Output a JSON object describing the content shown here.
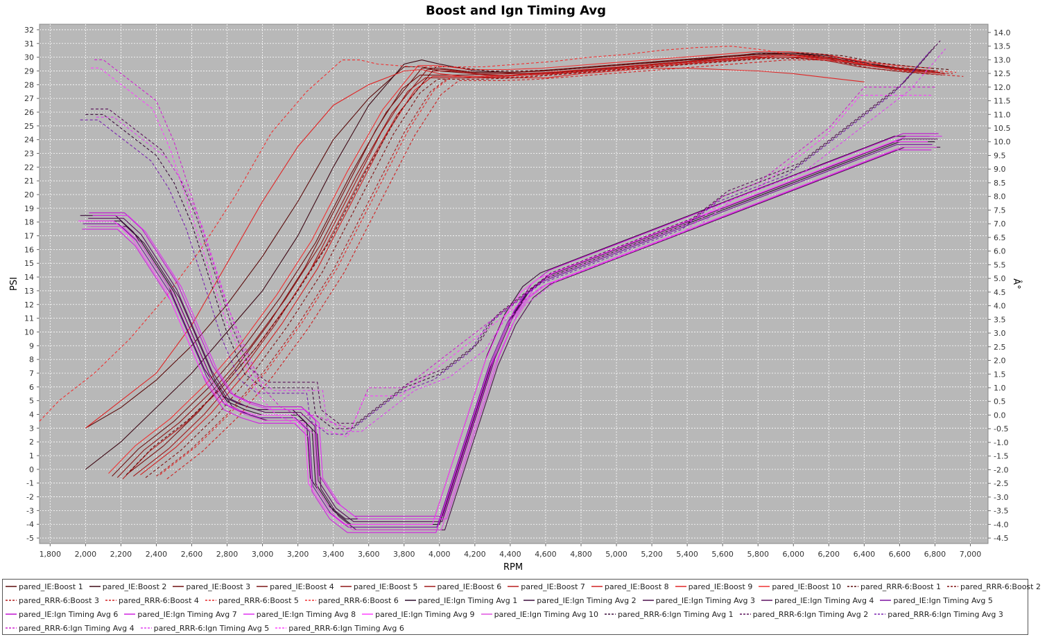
{
  "chart_data": {
    "type": "line",
    "title": "Boost and Ign Timing Avg",
    "xlabel": "RPM",
    "ylabel": "PSI",
    "y2label": "Â°",
    "xlim": [
      1740,
      7100
    ],
    "ylim": [
      -5.4,
      32.4
    ],
    "y2lim": [
      -4.7,
      14.3
    ],
    "grid": true,
    "legend_position": "bottom",
    "x_ticks": [
      "1,800",
      "2,000",
      "2,200",
      "2,400",
      "2,600",
      "2,800",
      "3,000",
      "3,200",
      "3,400",
      "3,600",
      "3,800",
      "4,000",
      "4,200",
      "4,400",
      "4,600",
      "4,800",
      "5,000",
      "5,200",
      "5,400",
      "5,600",
      "5,800",
      "6,000",
      "6,200",
      "6,400",
      "6,600",
      "6,800",
      "7,000"
    ],
    "y_ticks": [
      "-5",
      "-4",
      "-3",
      "-2",
      "-1",
      "0",
      "1",
      "2",
      "3",
      "4",
      "5",
      "6",
      "7",
      "8",
      "9",
      "10",
      "11",
      "12",
      "13",
      "14",
      "15",
      "16",
      "17",
      "18",
      "19",
      "20",
      "21",
      "22",
      "23",
      "24",
      "25",
      "26",
      "27",
      "28",
      "29",
      "30",
      "31",
      "32"
    ],
    "y2_ticks": [
      "-4.5",
      "-4.0",
      "-3.5",
      "-3.0",
      "-2.5",
      "-2.0",
      "-1.5",
      "-1.0",
      "-0.5",
      "0.0",
      "0.5",
      "1.0",
      "1.5",
      "2.0",
      "2.5",
      "3.0",
      "3.5",
      "4.0",
      "4.5",
      "5.0",
      "5.5",
      "6.0",
      "6.5",
      "7.0",
      "7.5",
      "8.0",
      "8.5",
      "9.0",
      "9.5",
      "10.0",
      "10.5",
      "11.0",
      "11.5",
      "12.0",
      "12.5",
      "13.0",
      "13.5",
      "14.0"
    ],
    "boost_profiles": [
      {
        "x": [
          2000,
          2200,
          2400,
          2600,
          2800,
          3000,
          3200,
          3400,
          3600,
          3800,
          3900,
          4000,
          4200,
          4400,
          4600,
          4800,
          5000,
          5200,
          5400,
          5600,
          5800,
          6000,
          6200,
          6400,
          6600,
          6800
        ],
        "y": [
          3,
          4.5,
          6.5,
          9,
          12,
          15.5,
          19.5,
          24,
          27,
          29.3,
          29.3,
          29,
          28.8,
          28.8,
          28.8,
          29,
          29.2,
          29.5,
          29.7,
          30,
          30.2,
          30.3,
          30,
          29.5,
          29.2,
          29
        ]
      },
      {
        "x": [
          2000,
          2200,
          2400,
          2600,
          2800,
          3000,
          3200,
          3400,
          3600,
          3800,
          3900,
          4000,
          4200,
          4400,
          4600,
          4800,
          5000,
          5200,
          5400,
          5600,
          5800,
          6000,
          6200,
          6400,
          6600,
          6800
        ],
        "y": [
          0,
          2,
          4.5,
          7,
          10,
          13,
          17,
          22,
          26.5,
          29.5,
          29.8,
          29.5,
          29,
          28.9,
          29,
          29.2,
          29.4,
          29.6,
          29.8,
          30,
          30.3,
          30.3,
          30.1,
          29.6,
          29.2,
          29
        ]
      },
      {
        "x": [
          2150,
          2300,
          2500,
          2700,
          2900,
          3100,
          3300,
          3500,
          3700,
          3900,
          4000,
          4200,
          4400,
          4600,
          4800,
          5000,
          5200,
          5400,
          5600,
          5800,
          6000,
          6200,
          6400,
          6600,
          6800
        ],
        "y": [
          -0.5,
          1.5,
          3.5,
          6,
          9,
          12.5,
          16.5,
          21.5,
          26,
          29.2,
          29.2,
          28.9,
          28.9,
          29,
          29.2,
          29.4,
          29.6,
          29.8,
          30,
          30.2,
          30.2,
          30,
          29.5,
          29.2,
          29
        ]
      },
      {
        "x": [
          2300,
          2500,
          2700,
          2900,
          3100,
          3300,
          3500,
          3700,
          3850,
          3950,
          4050,
          4200,
          4400,
          4600,
          4800,
          5000,
          5200,
          5400,
          5600,
          5800,
          6000,
          6200,
          6400,
          6600,
          6800
        ],
        "y": [
          -0.5,
          1.5,
          4,
          7,
          10.5,
          14.5,
          19.5,
          24.5,
          27.5,
          28.5,
          28.5,
          28.5,
          28.6,
          28.8,
          29,
          29.2,
          29.4,
          29.6,
          29.8,
          30,
          30,
          29.8,
          29.3,
          29,
          28.8
        ]
      },
      {
        "x": [
          2000,
          2200,
          2400,
          2600,
          2800,
          3000,
          3200,
          3400,
          3600,
          3800,
          3900,
          4000,
          4200,
          4400,
          4600,
          4800,
          5000,
          5200,
          5400,
          5600,
          5800,
          6000,
          6200,
          6400
        ],
        "y": [
          3,
          5,
          7,
          10.5,
          15,
          19.5,
          23.5,
          26.5,
          28,
          29,
          29.1,
          28.8,
          28.5,
          28.5,
          28.5,
          28.8,
          29,
          29.2,
          29.2,
          29.1,
          29,
          28.8,
          28.5,
          28.2
        ]
      }
    ],
    "timing_profiles": [
      {
        "x": [
          2000,
          2100,
          2200,
          2300,
          2400,
          2500,
          2600,
          2700,
          2800,
          2900,
          3000,
          3200,
          3280,
          3300,
          3400,
          3500,
          3600,
          3800,
          4000,
          4100,
          4200,
          4300,
          4400,
          4500,
          4600,
          4800,
          5000,
          5200,
          5400,
          5600,
          5800,
          6000,
          6200,
          6400,
          6600,
          6800
        ],
        "y": [
          7.1,
          7.1,
          7.1,
          6.5,
          5.5,
          4.5,
          3,
          1.5,
          0.5,
          0.2,
          0,
          0,
          -0.5,
          -2.5,
          -3.5,
          -4,
          -4,
          -4,
          -4,
          -2,
          0,
          2,
          3.5,
          4.5,
          5,
          5.5,
          6,
          6.5,
          7,
          7.5,
          8,
          8.5,
          9,
          9.5,
          10,
          10
        ]
      },
      {
        "x": [
          2000,
          2100,
          2200,
          2300,
          2400,
          2500,
          2600,
          2700,
          2800,
          2900,
          3000,
          3200,
          3280,
          3300,
          3400,
          3500,
          3600,
          3800,
          4000,
          4100,
          4200,
          4300,
          4400,
          4500,
          4600,
          4800,
          5000,
          5200,
          5400,
          5600,
          5800,
          6000,
          6200,
          6400,
          6600,
          6800
        ],
        "y": [
          11,
          11,
          10.5,
          10,
          9.5,
          8.5,
          7,
          5,
          3,
          1.5,
          1,
          1,
          1,
          0,
          -0.5,
          -0.5,
          0,
          1,
          1.5,
          2,
          2.5,
          3.5,
          4,
          4.5,
          5,
          5.5,
          6,
          6.5,
          7,
          8,
          8.5,
          9,
          10,
          11,
          12,
          13.5
        ]
      },
      {
        "x": [
          2050,
          2100,
          2200,
          2300,
          2400,
          2500,
          2600,
          2700,
          2800,
          2900,
          3000,
          3100,
          3200,
          3300,
          3400,
          3500,
          3600,
          3700,
          3800,
          3900,
          4000,
          4100,
          4200,
          4300,
          4400,
          4500,
          4600,
          4800,
          5000,
          5200,
          5400,
          5600,
          5800,
          6000,
          6200,
          6400,
          6800
        ],
        "y": [
          13,
          13,
          12.5,
          12,
          11.5,
          10,
          8,
          6,
          4,
          2.5,
          1,
          0.3,
          0,
          0,
          -0.3,
          -0.5,
          1,
          1,
          1,
          1.5,
          2,
          2.5,
          3,
          3.5,
          4,
          4.5,
          5,
          5.5,
          6,
          6.5,
          7,
          8,
          8.5,
          9.5,
          10.5,
          12,
          12
        ]
      }
    ],
    "series": [
      {
        "name": "pared_IE:Boost 1",
        "color": "#5a0a0a",
        "style": "solid",
        "group": "boost",
        "profile": 0,
        "dx": 0,
        "dy": 0
      },
      {
        "name": "pared_IE:Boost 2",
        "color": "#3d0814",
        "style": "solid",
        "group": "boost",
        "profile": 1,
        "dx": 0,
        "dy": 0
      },
      {
        "name": "pared_IE:Boost 3",
        "color": "#6e0f0f",
        "style": "solid",
        "group": "boost",
        "profile": 2,
        "dx": 0,
        "dy": 0
      },
      {
        "name": "pared_IE:Boost 4",
        "color": "#7a1212",
        "style": "solid",
        "group": "boost",
        "profile": 3,
        "dx": -60,
        "dy": 0.2
      },
      {
        "name": "pared_IE:Boost 5",
        "color": "#8e1414",
        "style": "solid",
        "group": "boost",
        "profile": 2,
        "dx": 30,
        "dy": -0.1
      },
      {
        "name": "pared_IE:Boost 6",
        "color": "#a01818",
        "style": "solid",
        "group": "boost",
        "profile": 3,
        "dx": -30,
        "dy": 0
      },
      {
        "name": "pared_IE:Boost 7",
        "color": "#b81c1c",
        "style": "solid",
        "group": "boost",
        "profile": 2,
        "dx": 60,
        "dy": -0.2
      },
      {
        "name": "pared_IE:Boost 8",
        "color": "#d02020",
        "style": "solid",
        "group": "boost",
        "profile": 3,
        "dx": 10,
        "dy": 0.1
      },
      {
        "name": "pared_IE:Boost 9",
        "color": "#e02525",
        "style": "solid",
        "group": "boost",
        "profile": 4,
        "dx": 0,
        "dy": 0
      },
      {
        "name": "pared_IE:Boost 10",
        "color": "#f03030",
        "style": "solid",
        "group": "boost",
        "profile": 2,
        "dx": -20,
        "dy": 0.2
      },
      {
        "name": "pared_RRR-6:Boost 1",
        "color": "#5a0a0a",
        "style": "dashed",
        "group": "boost",
        "profile": 2,
        "dx": 80,
        "dy": 0.1
      },
      {
        "name": "pared_RRR-6:Boost 2",
        "color": "#801010",
        "style": "dashed",
        "group": "boost",
        "profile": 3,
        "dx": 40,
        "dy": -0.1
      },
      {
        "name": "pared_RRR-6:Boost 3",
        "color": "#b01a1a",
        "style": "dashed",
        "group": "boost",
        "profile": 3,
        "dx": 100,
        "dy": 0
      },
      {
        "name": "pared_RRR-6:Boost 4",
        "color": "#d02020",
        "style": "dashed",
        "group": "boost",
        "profile": 3,
        "dx": 160,
        "dy": -0.2
      },
      {
        "name": "pared_RRR-6:Boost 5",
        "color": "#e62a2a",
        "style": "dashed",
        "group": "boost",
        "profile": 3,
        "dx": 120,
        "dy": 0.1
      },
      {
        "name": "pared_RRR-6:Boost 6",
        "color": "#f03030",
        "style": "dashed",
        "group": "boost",
        "profile": 0,
        "dx": -350,
        "dy": 0.5
      },
      {
        "name": "pared_IE:Ign Timing Avg 1",
        "color": "#2a0a2a",
        "style": "solid",
        "group": "timing",
        "profile": 0,
        "dx": 0,
        "dy": 0
      },
      {
        "name": "pared_IE:Ign Timing Avg 2",
        "color": "#3a0a3a",
        "style": "solid",
        "group": "timing",
        "profile": 0,
        "dx": -30,
        "dy": 0.2
      },
      {
        "name": "pared_IE:Ign Timing Avg 3",
        "color": "#4a0f4a",
        "style": "solid",
        "group": "timing",
        "profile": 0,
        "dx": 30,
        "dy": -0.2
      },
      {
        "name": "pared_IE:Ign Timing Avg 4",
        "color": "#5c1060",
        "style": "solid",
        "group": "timing",
        "profile": 0,
        "dx": 15,
        "dy": 0.1
      },
      {
        "name": "pared_IE:Ign Timing Avg 5",
        "color": "#7a10a0",
        "style": "solid",
        "group": "timing",
        "profile": 0,
        "dx": -15,
        "dy": -0.1
      },
      {
        "name": "pared_IE:Ign Timing Avg 6",
        "color": "#c010d0",
        "style": "solid",
        "group": "timing",
        "profile": 0,
        "dx": 20,
        "dy": 0.3
      },
      {
        "name": "pared_IE:Ign Timing Avg 7",
        "color": "#d020e0",
        "style": "solid",
        "group": "timing",
        "profile": 0,
        "dx": -20,
        "dy": -0.3
      },
      {
        "name": "pared_IE:Ign Timing Avg 8",
        "color": "#e030f0",
        "style": "solid",
        "group": "timing",
        "profile": 0,
        "dx": 40,
        "dy": 0.2
      },
      {
        "name": "pared_IE:Ign Timing Avg 9",
        "color": "#ff40ff",
        "style": "solid",
        "group": "timing",
        "profile": 0,
        "dx": -40,
        "dy": 0
      },
      {
        "name": "pared_IE:Ign Timing Avg 10",
        "color": "#e050e0",
        "style": "solid",
        "group": "timing",
        "profile": 0,
        "dx": 10,
        "dy": -0.2
      },
      {
        "name": "pared_RRR-6:Ign Timing Avg 1",
        "color": "#3a0a3a",
        "style": "dashed",
        "group": "timing",
        "profile": 1,
        "dx": 0,
        "dy": 0
      },
      {
        "name": "pared_RRR-6:Ign Timing Avg 2",
        "color": "#5a105a",
        "style": "dashed",
        "group": "timing",
        "profile": 1,
        "dx": 30,
        "dy": 0.2
      },
      {
        "name": "pared_RRR-6:Ign Timing Avg 3",
        "color": "#7a20b0",
        "style": "dashed",
        "group": "timing",
        "profile": 1,
        "dx": -30,
        "dy": -0.2
      },
      {
        "name": "pared_RRR-6:Ign Timing Avg 4",
        "color": "#d020d0",
        "style": "dashed",
        "group": "timing",
        "profile": 2,
        "dx": 0,
        "dy": 0
      },
      {
        "name": "pared_RRR-6:Ign Timing Avg 5",
        "color": "#e040f0",
        "style": "dashed",
        "group": "timing",
        "profile": 1,
        "dx": 60,
        "dy": -0.1
      },
      {
        "name": "pared_RRR-6:Ign Timing Avg 6",
        "color": "#ff40ff",
        "style": "dashed",
        "group": "timing",
        "profile": 2,
        "dx": -20,
        "dy": -0.3
      }
    ]
  },
  "legend_rows": [
    [
      0,
      1,
      2,
      3,
      4,
      5,
      6,
      7,
      8,
      9,
      10,
      11
    ],
    [
      12,
      13,
      14,
      15,
      16,
      17,
      18,
      19,
      20
    ],
    [
      21,
      22,
      23,
      24,
      25,
      26,
      27,
      28
    ],
    [
      29,
      30,
      31
    ]
  ]
}
